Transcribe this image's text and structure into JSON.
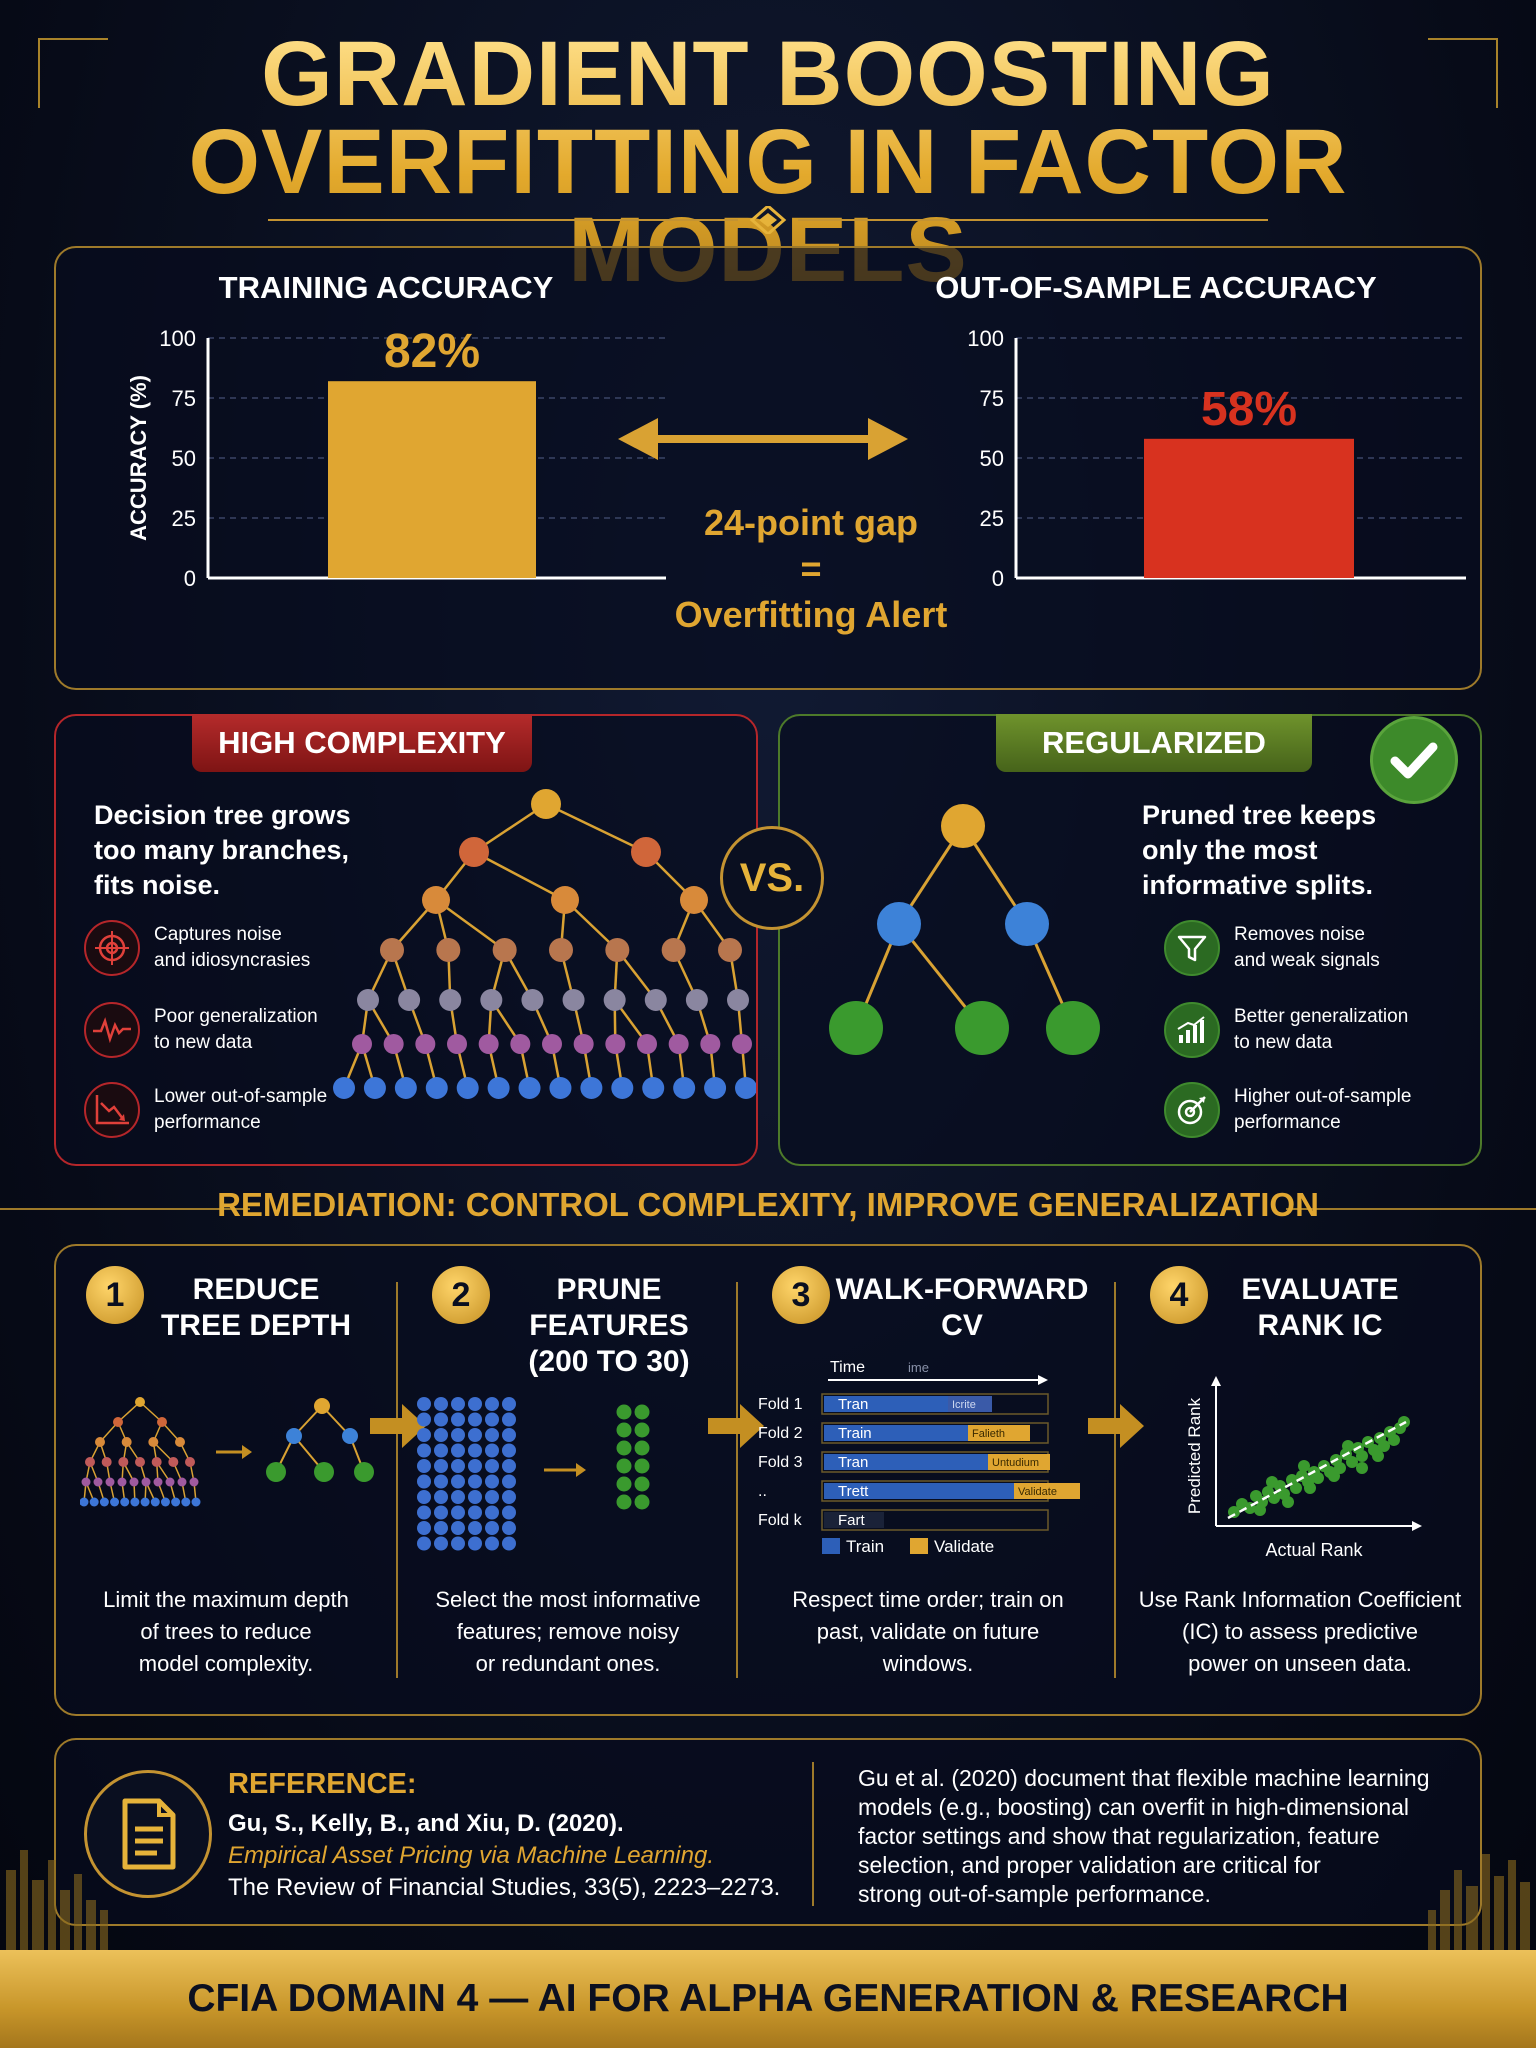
{
  "title": {
    "line1": "GRADIENT BOOSTING",
    "line2": "OVERFITTING IN FACTOR MODELS"
  },
  "colors": {
    "gold": "#e0a631",
    "red": "#d8321f",
    "green": "#3d8a2a",
    "navy": "#070b18"
  },
  "chart_data": [
    {
      "type": "bar",
      "title": "TRAINING ACCURACY",
      "ylabel": "ACCURACY (%)",
      "ylim": [
        0,
        100
      ],
      "yticks": [
        0,
        25,
        50,
        75,
        100
      ],
      "categories": [
        ""
      ],
      "values": [
        82
      ],
      "data_labels": [
        "82%"
      ],
      "bar_color": "#e0a631",
      "grid": true
    },
    {
      "type": "bar",
      "title": "OUT-OF-SAMPLE ACCURACY",
      "ylabel": "",
      "ylim": [
        0,
        100
      ],
      "yticks": [
        0,
        25,
        50,
        75,
        100
      ],
      "categories": [
        ""
      ],
      "values": [
        58
      ],
      "data_labels": [
        "58%"
      ],
      "bar_color": "#d8321f",
      "grid": true
    }
  ],
  "gap": {
    "line1": "24-point gap",
    "line2": "=",
    "line3": "Overfitting Alert"
  },
  "high": {
    "ribbon": "HIGH COMPLEXITY",
    "desc_lines": [
      "Decision tree grows",
      "too many branches,",
      "fits noise."
    ],
    "items": [
      {
        "icon": "target-icon",
        "lines": [
          "Captures noise",
          "and idiosyncrasies"
        ]
      },
      {
        "icon": "zigzag-signal-icon",
        "lines": [
          "Poor generalization",
          "to new data"
        ]
      },
      {
        "icon": "declining-chart-icon",
        "lines": [
          "Lower out-of-sample",
          "performance"
        ]
      }
    ]
  },
  "vs": "VS.",
  "reg": {
    "ribbon": "REGULARIZED",
    "desc_lines": [
      "Pruned tree keeps",
      "only the most",
      "informative splits."
    ],
    "items": [
      {
        "icon": "funnel-icon",
        "lines": [
          "Removes noise",
          "and weak signals"
        ]
      },
      {
        "icon": "rising-bars-icon",
        "lines": [
          "Better generalization",
          "to new data"
        ]
      },
      {
        "icon": "target-arrow-icon",
        "lines": [
          "Higher out-of-sample",
          "performance"
        ]
      }
    ]
  },
  "remediation": {
    "heading": "REMEDIATION: CONTROL COMPLEXITY, IMPROVE GENERALIZATION",
    "steps": [
      {
        "num": "1",
        "title_lines": [
          "REDUCE",
          "TREE DEPTH"
        ],
        "desc_lines": [
          "Limit the maximum depth",
          "of trees to reduce",
          "model complexity."
        ]
      },
      {
        "num": "2",
        "title_lines": [
          "PRUNE",
          "FEATURES",
          "(200 TO 30)"
        ],
        "desc_lines": [
          "Select the most informative",
          "features; remove noisy",
          "or redundant ones."
        ]
      },
      {
        "num": "3",
        "title_lines": [
          "WALK-FORWARD",
          "CV"
        ],
        "desc_lines": [
          "Respect time order; train on",
          "past, validate on future",
          "windows."
        ]
      },
      {
        "num": "4",
        "title_lines": [
          "EVALUATE",
          "RANK IC"
        ],
        "desc_lines": [
          "Use Rank Information Coefficient",
          "(IC) to assess predictive",
          "power on unseen data."
        ]
      }
    ],
    "cv": {
      "time_label": "Time",
      "time_label2": "ime",
      "folds": [
        "Fold 1",
        "Fold 2",
        "Fold 3",
        "..",
        "Fold k"
      ],
      "train_labels": [
        "Tran",
        "Train",
        "Tran",
        "Trett",
        "Fart"
      ],
      "validate_labels": [
        "Icrite",
        "Falieth",
        "Untudium",
        "Validate",
        ""
      ],
      "legend_train": "Train",
      "legend_validate": "Validate"
    },
    "scatter": {
      "ylabel": "Predicted Rank",
      "xlabel": "Actual Rank"
    }
  },
  "reference": {
    "label": "REFERENCE:",
    "authors": "Gu, S., Kelly, B., and Xiu, D. (2020).",
    "work": "Empirical Asset Pricing via Machine Learning.",
    "journal": "The Review of Financial Studies, 33(5), 2223–2273.",
    "summary_lines": [
      "Gu et al. (2020) document that flexible machine learning",
      "models (e.g., boosting) can overfit in high-dimensional",
      "factor settings and show that regularization, feature",
      "selection, and proper validation are critical for",
      "strong out-of-sample performance."
    ]
  },
  "footer": "CFIA DOMAIN 4 — AI FOR ALPHA GENERATION & RESEARCH"
}
